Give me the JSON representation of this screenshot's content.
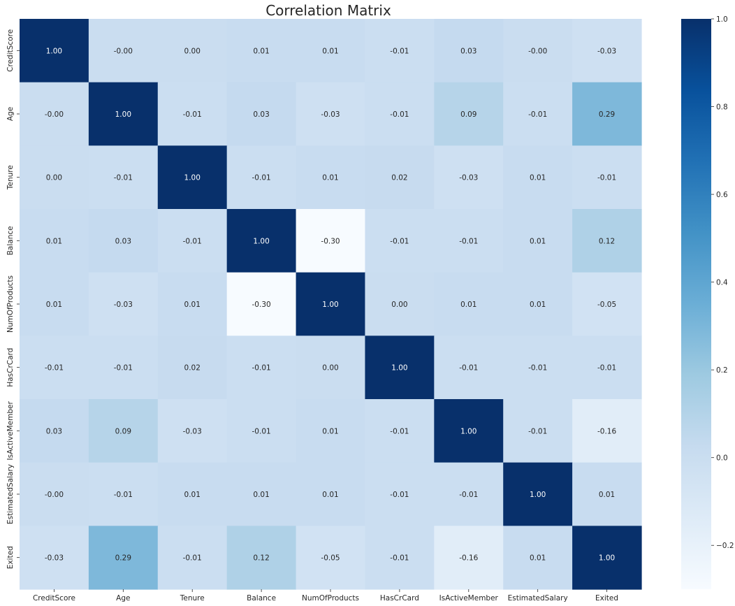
{
  "chart_data": {
    "type": "heatmap",
    "title": "Correlation Matrix",
    "xlabel": "",
    "ylabel": "",
    "labels": [
      "CreditScore",
      "Age",
      "Tenure",
      "Balance",
      "NumOfProducts",
      "HasCrCard",
      "IsActiveMember",
      "EstimatedSalary",
      "Exited"
    ],
    "values": [
      [
        1.0,
        -0.0,
        0.0,
        0.01,
        0.01,
        -0.01,
        0.03,
        -0.0,
        -0.03
      ],
      [
        -0.0,
        1.0,
        -0.01,
        0.03,
        -0.03,
        -0.01,
        0.09,
        -0.01,
        0.29
      ],
      [
        0.0,
        -0.01,
        1.0,
        -0.01,
        0.01,
        0.02,
        -0.03,
        0.01,
        -0.01
      ],
      [
        0.01,
        0.03,
        -0.01,
        1.0,
        -0.3,
        -0.01,
        -0.01,
        0.01,
        0.12
      ],
      [
        0.01,
        -0.03,
        0.01,
        -0.3,
        1.0,
        0.0,
        0.01,
        0.01,
        -0.05
      ],
      [
        -0.01,
        -0.01,
        0.02,
        -0.01,
        0.0,
        1.0,
        -0.01,
        -0.01,
        -0.01
      ],
      [
        0.03,
        0.09,
        -0.03,
        -0.01,
        0.01,
        -0.01,
        1.0,
        -0.01,
        -0.16
      ],
      [
        -0.0,
        -0.01,
        0.01,
        0.01,
        0.01,
        -0.01,
        -0.01,
        1.0,
        0.01
      ],
      [
        -0.03,
        0.29,
        -0.01,
        0.12,
        -0.05,
        -0.01,
        -0.16,
        0.01,
        1.0
      ]
    ],
    "display_values": [
      [
        "1.00",
        "-0.00",
        "0.00",
        "0.01",
        "0.01",
        "-0.01",
        "0.03",
        "-0.00",
        "-0.03"
      ],
      [
        "-0.00",
        "1.00",
        "-0.01",
        "0.03",
        "-0.03",
        "-0.01",
        "0.09",
        "-0.01",
        "0.29"
      ],
      [
        "0.00",
        "-0.01",
        "1.00",
        "-0.01",
        "0.01",
        "0.02",
        "-0.03",
        "0.01",
        "-0.01"
      ],
      [
        "0.01",
        "0.03",
        "-0.01",
        "1.00",
        "-0.30",
        "-0.01",
        "-0.01",
        "0.01",
        "0.12"
      ],
      [
        "0.01",
        "-0.03",
        "0.01",
        "-0.30",
        "1.00",
        "0.00",
        "0.01",
        "0.01",
        "-0.05"
      ],
      [
        "-0.01",
        "-0.01",
        "0.02",
        "-0.01",
        "0.00",
        "1.00",
        "-0.01",
        "-0.01",
        "-0.01"
      ],
      [
        "0.03",
        "0.09",
        "-0.03",
        "-0.01",
        "0.01",
        "-0.01",
        "1.00",
        "-0.01",
        "-0.16"
      ],
      [
        "-0.00",
        "-0.01",
        "0.01",
        "0.01",
        "0.01",
        "-0.01",
        "-0.01",
        "1.00",
        "0.01"
      ],
      [
        "-0.03",
        "0.29",
        "-0.01",
        "0.12",
        "-0.05",
        "-0.01",
        "-0.16",
        "0.01",
        "1.00"
      ]
    ],
    "colormap": "Blues",
    "vmin": -0.3,
    "vmax": 1.0,
    "colorbar_ticks": [
      -0.2,
      0.0,
      0.2,
      0.4,
      0.6,
      0.8,
      1.0
    ],
    "colorbar_tick_labels": [
      "−0.2",
      "0.0",
      "0.2",
      "0.4",
      "0.6",
      "0.8",
      "1.0"
    ],
    "annotation_colors": {
      "dark": "#262626",
      "light": "#ffffff"
    },
    "colormap_stops": [
      "#f7fbff",
      "#deebf7",
      "#c6dbef",
      "#9ecae1",
      "#6baed6",
      "#4292c6",
      "#2171b5",
      "#08519c",
      "#08306b"
    ]
  }
}
